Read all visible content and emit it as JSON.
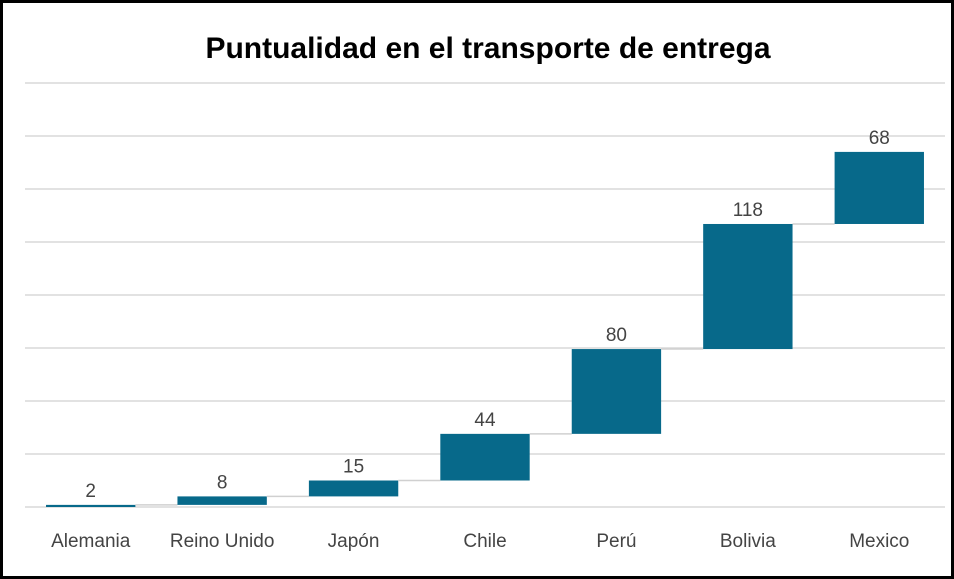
{
  "chart_data": {
    "type": "waterfall",
    "title": "Puntualidad en el transporte de entrega",
    "categories": [
      "Alemania",
      "Reino Unido",
      "Japón",
      "Chile",
      "Perú",
      "Bolivia",
      "Mexico"
    ],
    "values": [
      2,
      8,
      15,
      44,
      80,
      118,
      68
    ],
    "color": "#07698a",
    "ylim": [
      0,
      400
    ],
    "yticks": [
      0,
      50,
      100,
      150,
      200,
      250,
      300,
      350,
      400
    ],
    "grid": true
  }
}
